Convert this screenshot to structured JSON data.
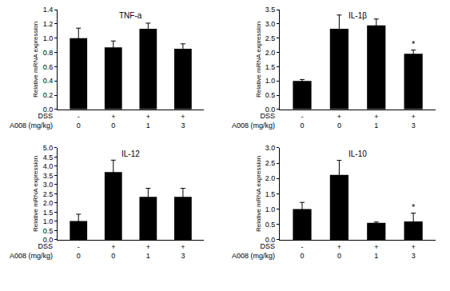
{
  "chart_data": [
    {
      "type": "bar",
      "title": "TNF-a",
      "y_label": "Relative mRNA expression",
      "color": "#000000",
      "grid": false,
      "x_rows": [
        {
          "name": "DSS",
          "values": [
            "-",
            "+",
            "+",
            "+"
          ]
        },
        {
          "name": "A008 (mg/kg)",
          "values": [
            0,
            0,
            1,
            3
          ]
        }
      ],
      "values": [
        1.0,
        0.87,
        1.13,
        0.85
      ],
      "errors": [
        0.14,
        0.09,
        0.08,
        0.07
      ],
      "ylim": [
        0,
        1.4
      ],
      "yticks": [
        {
          "value": 0,
          "label": "0.0"
        },
        0.2,
        0.4,
        0.6,
        0.8,
        {
          "value": 1,
          "label": "1.0"
        },
        1.2,
        1.4
      ],
      "annotations": []
    },
    {
      "type": "bar",
      "title": "IL-1β",
      "y_label": "Relative mRNA expression",
      "color": "#000000",
      "grid": false,
      "x_rows": [
        {
          "name": "DSS",
          "values": [
            "-",
            "+",
            "+",
            "+"
          ]
        },
        {
          "name": "A008 (mg/kg)",
          "values": [
            0,
            0,
            1,
            3
          ]
        }
      ],
      "values": [
        1.0,
        2.83,
        2.95,
        1.95
      ],
      "errors": [
        0.05,
        0.48,
        0.22,
        0.13
      ],
      "ylim": [
        0,
        3.5
      ],
      "yticks": [
        {
          "value": 0,
          "label": "0.0"
        },
        0.5,
        {
          "value": 1,
          "label": "1.0"
        },
        1.5,
        {
          "value": 2,
          "label": "2.0"
        },
        2.5,
        {
          "value": 3,
          "label": "3.0"
        },
        3.5
      ],
      "annotations": [
        {
          "index": 3,
          "text": "*"
        }
      ]
    },
    {
      "type": "bar",
      "title": "IL-12",
      "y_label": "Relative mRNA expression",
      "color": "#000000",
      "grid": false,
      "x_rows": [
        {
          "name": "DSS",
          "values": [
            "-",
            "+",
            "+",
            "+"
          ]
        },
        {
          "name": "A008 (mg/kg)",
          "values": [
            0,
            0,
            1,
            3
          ]
        }
      ],
      "values": [
        1.02,
        3.68,
        2.33,
        2.33
      ],
      "errors": [
        0.37,
        0.65,
        0.47,
        0.47
      ],
      "ylim": [
        0,
        5
      ],
      "yticks": [
        {
          "value": 0,
          "label": "0.0"
        },
        0.5,
        {
          "value": 1,
          "label": "1.0"
        },
        1.5,
        {
          "value": 2,
          "label": "2.0"
        },
        2.5,
        {
          "value": 3,
          "label": "3.0"
        },
        3.5,
        {
          "value": 4,
          "label": "4.0"
        },
        4.5,
        {
          "value": 5,
          "label": "5.0"
        }
      ],
      "annotations": []
    },
    {
      "type": "bar",
      "title": "IL-10",
      "y_label": "Relative mRNA expression",
      "color": "#000000",
      "grid": false,
      "x_rows": [
        {
          "name": "DSS",
          "values": [
            "-",
            "+",
            "+",
            "+"
          ]
        },
        {
          "name": "A008 (mg/kg)",
          "values": [
            0,
            0,
            1,
            3
          ]
        }
      ],
      "values": [
        1.0,
        2.12,
        0.55,
        0.6
      ],
      "errors": [
        0.22,
        0.47,
        0.03,
        0.27
      ],
      "ylim": [
        0,
        3
      ],
      "yticks": [
        {
          "value": 0,
          "label": "0.0"
        },
        0.5,
        {
          "value": 1,
          "label": "1.0"
        },
        1.5,
        {
          "value": 2,
          "label": "2.0"
        },
        2.5,
        {
          "value": 3,
          "label": "3.0"
        }
      ],
      "annotations": [
        {
          "index": 3,
          "text": "*"
        }
      ]
    }
  ]
}
